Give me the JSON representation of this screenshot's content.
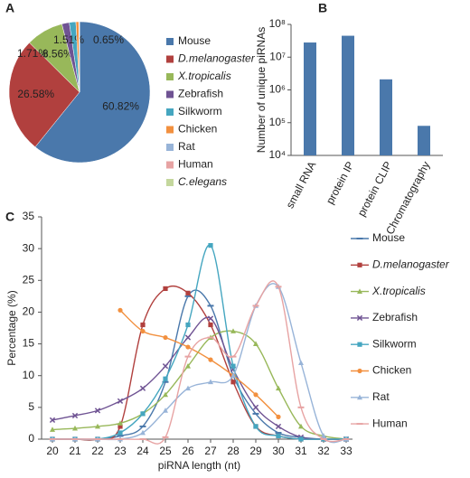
{
  "chart_data": [
    {
      "type": "pie",
      "label": "A",
      "categories": [
        "Mouse",
        "D.melanogaster",
        "X.tropicalis",
        "Zebrafish",
        "Silkworm",
        "Chicken",
        "Rat",
        "Human",
        "C.elegans"
      ],
      "values": [
        60.82,
        26.58,
        8.56,
        1.71,
        1.51,
        0.65,
        0.08,
        0.06,
        0.03
      ],
      "value_labels": [
        "60.82%",
        "26.58%",
        "8.56%",
        "1.71%",
        "1.51%",
        "0.65%",
        null,
        null,
        null
      ],
      "colors": [
        "#4a78ab",
        "#b1403e",
        "#98b85a",
        "#6f5393",
        "#45a6c0",
        "#f2903f",
        "#98b4d8",
        "#e7a3a3",
        "#c4d79d"
      ],
      "italic": [
        false,
        true,
        true,
        false,
        false,
        false,
        false,
        false,
        true
      ]
    },
    {
      "type": "bar",
      "label": "B",
      "ylabel": "Number of unique piRNAs",
      "categories": [
        "small RNA",
        "protein IP",
        "protein CLIP",
        "Chromatography"
      ],
      "values": [
        28000000,
        45000000,
        2100000,
        80000
      ],
      "color": "#4a78ab",
      "log_scale": true,
      "ylim": [
        10000,
        100000000
      ],
      "yticks": [
        {
          "value": 10000,
          "label": "10⁴"
        },
        {
          "value": 100000,
          "label": "10⁵"
        },
        {
          "value": 1000000,
          "label": "10⁶"
        },
        {
          "value": 10000000,
          "label": "10⁷"
        },
        {
          "value": 100000000,
          "label": "10⁸"
        }
      ]
    },
    {
      "type": "line",
      "label": "C",
      "xlabel": "piRNA length (nt)",
      "ylabel": "Percentage (%)",
      "x": [
        20,
        21,
        22,
        23,
        24,
        25,
        26,
        27,
        28,
        29,
        30,
        31,
        32,
        33
      ],
      "xlim": [
        20,
        33
      ],
      "xticks": [
        20,
        21,
        22,
        23,
        24,
        25,
        26,
        27,
        28,
        29,
        30,
        31,
        32,
        33
      ],
      "ylim": [
        0,
        35
      ],
      "yticks": [
        0,
        5,
        10,
        15,
        20,
        25,
        30,
        35
      ],
      "series": [
        {
          "name": "Mouse",
          "color": "#4a78ab",
          "marker": "dash",
          "italic": false,
          "values": [
            0,
            0,
            0,
            0.5,
            2,
            9,
            22.5,
            21,
            10,
            4,
            1,
            0.3,
            0,
            0
          ]
        },
        {
          "name": "D.melanogaster",
          "color": "#b1403e",
          "marker": "square",
          "italic": true,
          "values": [
            0,
            0,
            0,
            2,
            18,
            23.7,
            23,
            18,
            9,
            2,
            0.5,
            0,
            0,
            0
          ]
        },
        {
          "name": "X.tropicalis",
          "color": "#98b85a",
          "marker": "triangle",
          "italic": true,
          "values": [
            1.5,
            1.7,
            2,
            2.5,
            4,
            7,
            11.5,
            16,
            17,
            15,
            8,
            2,
            0.5,
            0
          ]
        },
        {
          "name": "Zebrafish",
          "color": "#6f5393",
          "marker": "x",
          "italic": false,
          "values": [
            3,
            3.7,
            4.5,
            6,
            8,
            11.5,
            16,
            19,
            11,
            5,
            2,
            0.3,
            0,
            0
          ]
        },
        {
          "name": "Silkworm",
          "color": "#45a6c0",
          "marker": "square",
          "italic": false,
          "values": [
            0,
            0,
            0,
            1,
            4,
            9.5,
            18,
            30.5,
            11.5,
            2,
            0.5,
            0,
            0,
            0
          ]
        },
        {
          "name": "Chicken",
          "color": "#f2903f",
          "marker": "circle",
          "italic": false,
          "values": [
            null,
            null,
            null,
            20.3,
            17,
            16,
            14.5,
            12.5,
            10,
            7,
            3.5,
            null,
            null,
            null
          ]
        },
        {
          "name": "Rat",
          "color": "#98b4d8",
          "marker": "triangle",
          "italic": false,
          "values": [
            0,
            0,
            0,
            0,
            1,
            4.5,
            8,
            9,
            10,
            21,
            24,
            12,
            0.5,
            0
          ]
        },
        {
          "name": "Human",
          "color": "#e7a3a3",
          "marker": "dash",
          "italic": false,
          "values": [
            0,
            0,
            0,
            0,
            0,
            0.3,
            13,
            16,
            13,
            21,
            24,
            5,
            0,
            0
          ]
        }
      ]
    }
  ]
}
